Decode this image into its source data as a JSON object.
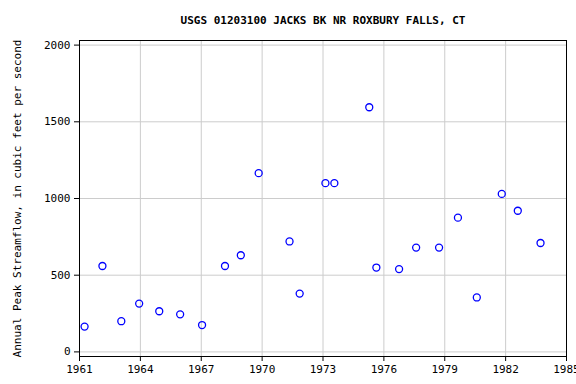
{
  "chart_data": {
    "type": "scatter",
    "title": "USGS 01203100 JACKS BK NR ROXBURY FALLS, CT",
    "y_label": "Annual Peak Streamflow, in cubic feet per second",
    "x": [
      1961.25,
      1962.13,
      1963.06,
      1963.94,
      1964.93,
      1965.96,
      1967.04,
      1968.17,
      1968.95,
      1969.83,
      1971.35,
      1971.85,
      1973.12,
      1973.56,
      1975.28,
      1975.63,
      1976.75,
      1977.59,
      1978.72,
      1979.65,
      1980.58,
      1981.81,
      1982.6,
      1983.72
    ],
    "values": [
      165,
      560,
      200,
      315,
      265,
      245,
      175,
      560,
      630,
      1165,
      720,
      380,
      1100,
      1100,
      1595,
      550,
      540,
      680,
      680,
      875,
      355,
      1030,
      920,
      710
    ],
    "color": "#0000ff",
    "marker": "circle",
    "xlim": [
      1961,
      1985
    ],
    "xticks": [
      1961,
      1964,
      1967,
      1970,
      1973,
      1976,
      1979,
      1982,
      1985
    ],
    "ylim": [
      -30,
      2030
    ],
    "yticks": [
      0,
      500,
      1000,
      1500,
      2000
    ],
    "grid": true
  }
}
